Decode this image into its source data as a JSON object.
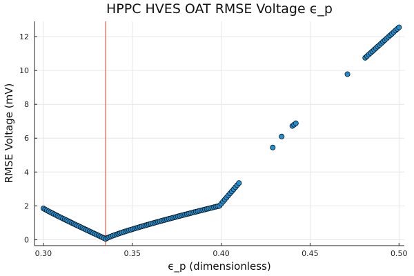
{
  "chart_data": {
    "type": "scatter",
    "title": "HPPC HVES OAT RMSE Voltage ϵ_p",
    "xlabel": "ϵ_p (dimensionless)",
    "ylabel": "RMSE Voltage (mV)",
    "xlim": [
      0.295,
      0.503
    ],
    "ylim": [
      -0.35,
      12.9
    ],
    "xticks": [
      0.3,
      0.35,
      0.4,
      0.45,
      0.5
    ],
    "xtick_labels": [
      "0.30",
      "0.35",
      "0.40",
      "0.45",
      "0.50"
    ],
    "yticks": [
      0,
      2,
      4,
      6,
      8,
      10,
      12
    ],
    "ytick_labels": [
      "0",
      "2",
      "4",
      "6",
      "8",
      "10",
      "12"
    ],
    "grid": true,
    "legend": "none",
    "vline": {
      "x": 0.335,
      "color": "#e0302a"
    },
    "marker_color": "#1f8fd6",
    "marker_edge": "#111111",
    "segments": [
      {
        "x_start": 0.3,
        "x_end": 0.335,
        "y_start": 1.85,
        "y_end": 0.05,
        "n": 36,
        "curve": 0.95
      },
      {
        "x_start": 0.335,
        "x_end": 0.399,
        "y_start": 0.05,
        "y_end": 2.0,
        "n": 64,
        "curve": 0.85
      },
      {
        "x_start": 0.399,
        "x_end": 0.41,
        "y_start": 2.0,
        "y_end": 3.35,
        "n": 12,
        "curve": 1.0
      },
      {
        "x_start": 0.481,
        "x_end": 0.5,
        "y_start": 10.75,
        "y_end": 12.55,
        "n": 20,
        "curve": 1.0
      }
    ],
    "points": [
      [
        0.429,
        5.45
      ],
      [
        0.434,
        6.1
      ],
      [
        0.44,
        6.72
      ],
      [
        0.441,
        6.8
      ],
      [
        0.442,
        6.88
      ],
      [
        0.471,
        9.78
      ]
    ]
  }
}
